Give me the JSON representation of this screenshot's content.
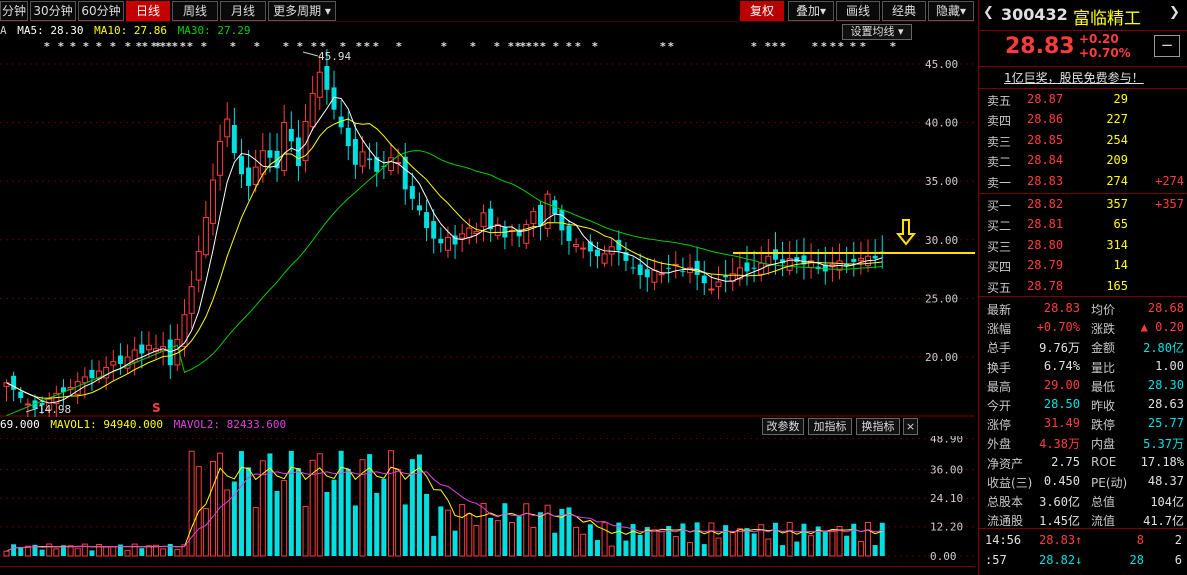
{
  "periods": [
    "分钟",
    "30分钟",
    "60分钟",
    "日线",
    "周线",
    "月线",
    "更多周期"
  ],
  "right_tools": [
    "复权",
    "叠加",
    "画线",
    "经典",
    "隐藏"
  ],
  "ma_legend": {
    "a": "A",
    "ma5": "MA5: 28.30",
    "ma10": "MA10: 27.86",
    "ma30": "MA30: 27.29"
  },
  "settings_ma": "设置均线",
  "high_label": "45.94",
  "low_label": "14.98",
  "s_marker": "S",
  "price_ticks": [
    "45.00",
    "40.00",
    "35.00",
    "30.00",
    "25.00",
    "20.00"
  ],
  "vol_legend": {
    "vol": "69.000",
    "mavol1": "MAVOL1: 94940.000",
    "mavol2": "MAVOL2: 82433.600"
  },
  "vol_buttons": [
    "改参数",
    "加指标",
    "换指标"
  ],
  "vol_close": "×",
  "vol_ticks": [
    "48.90",
    "36.00",
    "24.10",
    "12.20",
    "0.00"
  ],
  "colors": {
    "up": "#ff3c3c",
    "down": "#00e0e0",
    "ma5": "#ffffff",
    "ma10": "#ffff00",
    "ma30": "#00d000",
    "mavol2": "#e040e0",
    "yellow_line": "#ffe000"
  },
  "quote": {
    "code": "300432",
    "name": "富临精工",
    "price": "28.83",
    "change": "+0.20",
    "change_pct": "+0.70%",
    "minus": "−",
    "ad": "1亿巨奖，股民免费参与！",
    "asks": [
      {
        "label": "卖五",
        "price": "28.87",
        "vol": "29",
        "delta": ""
      },
      {
        "label": "卖四",
        "price": "28.86",
        "vol": "227",
        "delta": ""
      },
      {
        "label": "卖三",
        "price": "28.85",
        "vol": "254",
        "delta": ""
      },
      {
        "label": "卖二",
        "price": "28.84",
        "vol": "209",
        "delta": ""
      },
      {
        "label": "卖一",
        "price": "28.83",
        "vol": "274",
        "delta": "+274"
      }
    ],
    "bids": [
      {
        "label": "买一",
        "price": "28.82",
        "vol": "357",
        "delta": "+357"
      },
      {
        "label": "买二",
        "price": "28.81",
        "vol": "65",
        "delta": ""
      },
      {
        "label": "买三",
        "price": "28.80",
        "vol": "314",
        "delta": ""
      },
      {
        "label": "买四",
        "price": "28.79",
        "vol": "14",
        "delta": ""
      },
      {
        "label": "买五",
        "price": "28.78",
        "vol": "165",
        "delta": ""
      }
    ],
    "stats": [
      {
        "l1": "最新",
        "v1": "28.83",
        "c1": "red",
        "l2": "均价",
        "v2": "28.68",
        "c2": "red"
      },
      {
        "l1": "涨幅",
        "v1": "+0.70%",
        "c1": "red",
        "l2": "涨跌",
        "v2": "▲ 0.20",
        "c2": "red"
      },
      {
        "l1": "总手",
        "v1": "9.76万",
        "c1": "white",
        "l2": "金额",
        "v2": "2.80亿",
        "c2": "green"
      },
      {
        "l1": "换手",
        "v1": "6.74%",
        "c1": "white",
        "l2": "量比",
        "v2": "1.00",
        "c2": "white"
      },
      {
        "l1": "最高",
        "v1": "29.00",
        "c1": "red",
        "l2": "最低",
        "v2": "28.30",
        "c2": "green"
      },
      {
        "l1": "今开",
        "v1": "28.50",
        "c1": "green",
        "l2": "昨收",
        "v2": "28.63",
        "c2": "white"
      },
      {
        "l1": "涨停",
        "v1": "31.49",
        "c1": "red",
        "l2": "跌停",
        "v2": "25.77",
        "c2": "green"
      },
      {
        "l1": "外盘",
        "v1": "4.38万",
        "c1": "red",
        "l2": "内盘",
        "v2": "5.37万",
        "c2": "green"
      },
      {
        "l1": "净资产",
        "v1": "2.75",
        "c1": "white",
        "l2": "ROE",
        "v2": "17.18%",
        "c2": "white"
      },
      {
        "l1": "收益(三)",
        "v1": "0.450",
        "c1": "white",
        "l2": "PE(动)",
        "v2": "48.37",
        "c2": "white"
      },
      {
        "l1": "总股本",
        "v1": "3.60亿",
        "c1": "white",
        "l2": "总值",
        "v2": "104亿",
        "c2": "white"
      },
      {
        "l1": "流通股",
        "v1": "1.45亿",
        "c1": "white",
        "l2": "流值",
        "v2": "41.7亿",
        "c2": "white"
      }
    ],
    "ticks": [
      {
        "time": "14:56",
        "price": "28.83",
        "arrow": "↑",
        "vol": "8",
        "num": "2",
        "color": "red"
      },
      {
        "time": ":57",
        "price": "28.82",
        "arrow": "↓",
        "vol": "28",
        "num": "6",
        "color": "green"
      }
    ]
  }
}
